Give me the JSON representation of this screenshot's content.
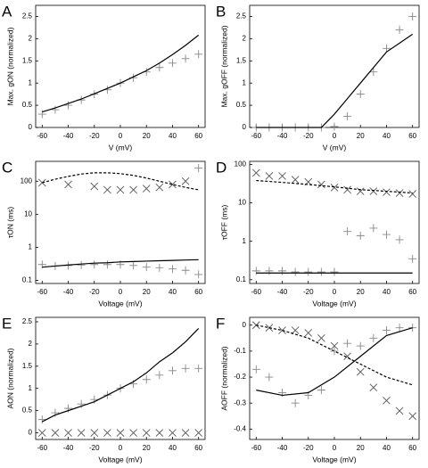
{
  "chart_data": [
    {
      "type": "line",
      "title": "A",
      "xlabel": "V (mV)",
      "ylabel": "Max. gON (normalized)",
      "xlim": [
        -65,
        65
      ],
      "xticks": [
        -60,
        -40,
        -20,
        0,
        20,
        40,
        60
      ],
      "ylim": [
        0,
        2.75
      ],
      "yticks": [
        0,
        0.5,
        1,
        1.5,
        2,
        2.5
      ],
      "series": [
        {
          "style": "plus",
          "color": "#888888",
          "x": [
            -60,
            -50,
            -40,
            -30,
            -20,
            -10,
            0,
            10,
            20,
            30,
            40,
            50,
            60
          ],
          "values": [
            0.3,
            0.4,
            0.5,
            0.62,
            0.75,
            0.85,
            1.0,
            1.12,
            1.25,
            1.35,
            1.45,
            1.55,
            1.65
          ]
        },
        {
          "style": "solid",
          "color": "#000000",
          "x": [
            -60,
            -50,
            -40,
            -30,
            -20,
            -10,
            0,
            10,
            20,
            30,
            40,
            50,
            60
          ],
          "values": [
            0.35,
            0.44,
            0.54,
            0.64,
            0.76,
            0.88,
            1.0,
            1.14,
            1.28,
            1.45,
            1.64,
            1.85,
            2.08
          ]
        }
      ]
    },
    {
      "type": "line",
      "title": "B",
      "xlabel": "V (mV)",
      "ylabel": "Max. gOFF (normalized)",
      "xlim": [
        -65,
        65
      ],
      "xticks": [
        -60,
        -40,
        -20,
        0,
        20,
        40,
        60
      ],
      "ylim": [
        0,
        2.75
      ],
      "yticks": [
        0,
        0.5,
        1,
        1.5,
        2,
        2.5
      ],
      "series": [
        {
          "style": "plus",
          "color": "#888888",
          "x": [
            -60,
            -50,
            -40,
            -30,
            -20,
            -10,
            0,
            10,
            20,
            30,
            40,
            50,
            60
          ],
          "values": [
            0,
            0,
            0,
            0,
            0,
            0,
            0.02,
            0.25,
            0.75,
            1.25,
            1.78,
            2.2,
            2.5
          ]
        },
        {
          "style": "solid",
          "color": "#000000",
          "x": [
            -60,
            -50,
            -40,
            -30,
            -20,
            -10,
            0,
            10,
            20,
            30,
            40,
            50,
            60
          ],
          "values": [
            0,
            0,
            0,
            0,
            0,
            0,
            0.3,
            0.65,
            1.0,
            1.35,
            1.7,
            1.9,
            2.1
          ]
        }
      ]
    },
    {
      "type": "line",
      "title": "C",
      "xlabel": "Voltage (mV)",
      "ylabel": "τON (ms)",
      "yscale": "log",
      "xlim": [
        -65,
        65
      ],
      "xticks": [
        -60,
        -40,
        -20,
        0,
        20,
        40,
        60
      ],
      "ylim": [
        0.08,
        400
      ],
      "yticks": [
        0.1,
        1,
        10,
        100
      ],
      "series": [
        {
          "style": "cross",
          "color": "#555555",
          "x": [
            -60,
            -40,
            -20,
            -10,
            0,
            10,
            20,
            30,
            40,
            50
          ],
          "values": [
            90,
            80,
            70,
            55,
            55,
            55,
            60,
            65,
            80,
            100
          ]
        },
        {
          "style": "plus",
          "color": "#888888",
          "x": [
            60
          ],
          "values": [
            250
          ]
        },
        {
          "style": "plus",
          "color": "#888888",
          "x": [
            -60,
            -50,
            -40,
            -30,
            -20,
            -10,
            0,
            10,
            20,
            30,
            40,
            50,
            60
          ],
          "values": [
            0.3,
            0.27,
            0.28,
            0.29,
            0.3,
            0.3,
            0.3,
            0.28,
            0.25,
            0.24,
            0.22,
            0.2,
            0.15
          ]
        },
        {
          "style": "dashed",
          "color": "#000000",
          "x": [
            -60,
            -50,
            -40,
            -30,
            -20,
            -10,
            0,
            10,
            20,
            30,
            40,
            50,
            60
          ],
          "values": [
            90,
            115,
            140,
            165,
            180,
            180,
            170,
            150,
            125,
            100,
            80,
            65,
            55
          ]
        },
        {
          "style": "solid",
          "color": "#000000",
          "x": [
            -60,
            -50,
            -40,
            -30,
            -20,
            -10,
            0,
            10,
            20,
            30,
            40,
            50,
            60
          ],
          "values": [
            0.25,
            0.27,
            0.29,
            0.31,
            0.33,
            0.34,
            0.36,
            0.37,
            0.38,
            0.39,
            0.4,
            0.41,
            0.42
          ]
        }
      ]
    },
    {
      "type": "line",
      "title": "D",
      "xlabel": "Voltage (mV)",
      "ylabel": "τOFF (ms)",
      "yscale": "log",
      "xlim": [
        -65,
        65
      ],
      "xticks": [
        -60,
        -40,
        -20,
        0,
        20,
        40,
        60
      ],
      "ylim": [
        0.08,
        120
      ],
      "yticks": [
        0.1,
        1,
        10,
        100
      ],
      "series": [
        {
          "style": "cross",
          "color": "#555555",
          "x": [
            -60,
            -50,
            -40,
            -30,
            -20,
            -10,
            0,
            10,
            20,
            30,
            40,
            50,
            60
          ],
          "values": [
            60,
            50,
            50,
            40,
            35,
            30,
            25,
            22,
            20,
            20,
            19,
            18,
            17
          ]
        },
        {
          "style": "dashed",
          "color": "#000000",
          "x": [
            -60,
            -50,
            -40,
            -30,
            -20,
            -10,
            0,
            10,
            20,
            30,
            40,
            50,
            60
          ],
          "values": [
            38,
            36,
            34,
            32,
            30,
            28,
            26,
            24,
            22,
            21,
            20,
            19,
            18
          ]
        },
        {
          "style": "plus",
          "color": "#888888",
          "x": [
            -60,
            -50,
            -40,
            -30,
            -20,
            -10,
            0,
            10,
            20,
            30,
            40,
            50,
            60
          ],
          "values": [
            0.17,
            0.17,
            0.17,
            0.16,
            0.16,
            0.16,
            0.16,
            1.8,
            1.4,
            2.2,
            1.5,
            1.1,
            0.35
          ]
        },
        {
          "style": "solid",
          "color": "#000000",
          "x": [
            -60,
            60
          ],
          "values": [
            0.15,
            0.15
          ]
        }
      ]
    },
    {
      "type": "line",
      "title": "E",
      "xlabel": "Voltage (mV)",
      "ylabel": "AON (normalized)",
      "xlim": [
        -65,
        65
      ],
      "xticks": [
        -60,
        -40,
        -20,
        0,
        20,
        40,
        60
      ],
      "ylim": [
        -0.15,
        2.6
      ],
      "yticks": [
        0,
        0.5,
        1,
        1.5,
        2,
        2.5
      ],
      "series": [
        {
          "style": "plus",
          "color": "#888888",
          "x": [
            -60,
            -50,
            -40,
            -30,
            -20,
            -10,
            0,
            10,
            20,
            30,
            40,
            50,
            60
          ],
          "values": [
            0.3,
            0.45,
            0.55,
            0.65,
            0.75,
            0.85,
            1.0,
            1.1,
            1.2,
            1.3,
            1.4,
            1.45,
            1.45
          ]
        },
        {
          "style": "cross",
          "color": "#555555",
          "x": [
            -60,
            -50,
            -40,
            -30,
            -20,
            -10,
            0,
            10,
            20,
            30,
            40,
            50,
            60
          ],
          "values": [
            0,
            0,
            0,
            0,
            0,
            0,
            0,
            0,
            0,
            0,
            0,
            0,
            0
          ]
        },
        {
          "style": "solid",
          "color": "#000000",
          "x": [
            -60,
            -50,
            -40,
            -30,
            -20,
            -10,
            0,
            10,
            20,
            30,
            40,
            50,
            60
          ],
          "values": [
            0.25,
            0.4,
            0.5,
            0.6,
            0.7,
            0.85,
            1.0,
            1.15,
            1.35,
            1.6,
            1.8,
            2.05,
            2.35
          ]
        }
      ]
    },
    {
      "type": "line",
      "title": "F",
      "xlabel": "Voltage (mV)",
      "ylabel": "AOFF (normalized)",
      "xlim": [
        -65,
        65
      ],
      "xticks": [
        -60,
        -40,
        -20,
        0,
        20,
        40,
        60
      ],
      "ylim": [
        -0.44,
        0.03
      ],
      "yticks": [
        0,
        -0.1,
        -0.2,
        -0.3,
        -0.4
      ],
      "series": [
        {
          "style": "cross",
          "color": "#555555",
          "x": [
            -60,
            -50,
            -40,
            -30,
            -20,
            -10,
            0,
            10,
            20,
            30,
            40,
            50,
            60
          ],
          "values": [
            0,
            -0.01,
            -0.02,
            -0.02,
            -0.03,
            -0.05,
            -0.08,
            -0.12,
            -0.18,
            -0.24,
            -0.29,
            -0.33,
            -0.35
          ]
        },
        {
          "style": "dashed",
          "color": "#000000",
          "x": [
            -60,
            -40,
            -20,
            0,
            20,
            40,
            60
          ],
          "values": [
            0,
            -0.02,
            -0.05,
            -0.1,
            -0.15,
            -0.2,
            -0.23
          ]
        },
        {
          "style": "plus",
          "color": "#888888",
          "x": [
            -60,
            -50,
            -40,
            -30,
            -20,
            -10,
            0,
            10,
            20,
            30,
            40,
            50,
            60
          ],
          "values": [
            -0.17,
            -0.2,
            -0.26,
            -0.3,
            -0.27,
            -0.25,
            -0.1,
            -0.07,
            -0.08,
            -0.05,
            -0.02,
            -0.01,
            -0.01
          ]
        },
        {
          "style": "solid",
          "color": "#000000",
          "x": [
            -60,
            -40,
            -20,
            0,
            20,
            40,
            60
          ],
          "values": [
            -0.25,
            -0.27,
            -0.26,
            -0.2,
            -0.12,
            -0.04,
            -0.01
          ]
        }
      ]
    }
  ]
}
